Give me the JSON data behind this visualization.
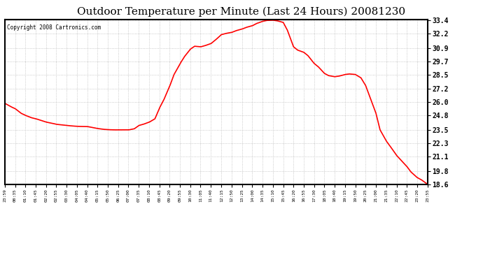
{
  "title": "Outdoor Temperature per Minute (Last 24 Hours) 20081230",
  "copyright": "Copyright 2008 Cartronics.com",
  "line_color": "#ff0000",
  "background_color": "#ffffff",
  "grid_color": "#bbbbbb",
  "title_fontsize": 11,
  "ytick_labels": [
    "18.6",
    "19.8",
    "21.1",
    "22.3",
    "23.5",
    "24.8",
    "26.0",
    "27.2",
    "28.5",
    "29.7",
    "30.9",
    "32.2",
    "33.4"
  ],
  "ytick_values": [
    18.6,
    19.8,
    21.1,
    22.3,
    23.5,
    24.8,
    26.0,
    27.2,
    28.5,
    29.7,
    30.9,
    32.2,
    33.4
  ],
  "xtick_labels": [
    "23:59",
    "00:35",
    "01:10",
    "01:45",
    "02:20",
    "02:55",
    "03:30",
    "04:05",
    "04:40",
    "05:15",
    "05:50",
    "06:25",
    "07:00",
    "07:35",
    "08:10",
    "08:45",
    "09:20",
    "09:55",
    "10:30",
    "11:05",
    "11:40",
    "12:15",
    "12:50",
    "13:25",
    "14:00",
    "14:35",
    "15:10",
    "15:45",
    "16:20",
    "16:55",
    "17:30",
    "18:05",
    "18:40",
    "19:15",
    "19:50",
    "20:25",
    "21:00",
    "21:35",
    "22:10",
    "22:45",
    "23:20",
    "23:55"
  ],
  "temperature_keypoints": [
    [
      0,
      25.9
    ],
    [
      20,
      25.6
    ],
    [
      36,
      25.4
    ],
    [
      55,
      25.0
    ],
    [
      71,
      24.8
    ],
    [
      90,
      24.6
    ],
    [
      106,
      24.5
    ],
    [
      130,
      24.3
    ],
    [
      141,
      24.2
    ],
    [
      160,
      24.1
    ],
    [
      176,
      24.0
    ],
    [
      195,
      23.95
    ],
    [
      211,
      23.9
    ],
    [
      230,
      23.85
    ],
    [
      246,
      23.82
    ],
    [
      265,
      23.8
    ],
    [
      281,
      23.8
    ],
    [
      300,
      23.7
    ],
    [
      316,
      23.62
    ],
    [
      335,
      23.55
    ],
    [
      351,
      23.52
    ],
    [
      370,
      23.5
    ],
    [
      386,
      23.5
    ],
    [
      400,
      23.5
    ],
    [
      421,
      23.5
    ],
    [
      440,
      23.6
    ],
    [
      456,
      23.9
    ],
    [
      470,
      24.0
    ],
    [
      491,
      24.2
    ],
    [
      510,
      24.5
    ],
    [
      526,
      25.5
    ],
    [
      540,
      26.2
    ],
    [
      561,
      27.5
    ],
    [
      575,
      28.5
    ],
    [
      596,
      29.5
    ],
    [
      610,
      30.1
    ],
    [
      631,
      30.8
    ],
    [
      645,
      31.05
    ],
    [
      666,
      31.0
    ],
    [
      680,
      31.1
    ],
    [
      701,
      31.3
    ],
    [
      715,
      31.6
    ],
    [
      736,
      32.1
    ],
    [
      750,
      32.2
    ],
    [
      771,
      32.3
    ],
    [
      785,
      32.45
    ],
    [
      806,
      32.6
    ],
    [
      820,
      32.75
    ],
    [
      841,
      32.9
    ],
    [
      855,
      33.1
    ],
    [
      876,
      33.3
    ],
    [
      890,
      33.38
    ],
    [
      911,
      33.4
    ],
    [
      925,
      33.35
    ],
    [
      946,
      33.2
    ],
    [
      960,
      32.5
    ],
    [
      981,
      31.0
    ],
    [
      995,
      30.7
    ],
    [
      1016,
      30.5
    ],
    [
      1030,
      30.2
    ],
    [
      1051,
      29.5
    ],
    [
      1065,
      29.2
    ],
    [
      1086,
      28.6
    ],
    [
      1100,
      28.4
    ],
    [
      1121,
      28.3
    ],
    [
      1135,
      28.35
    ],
    [
      1156,
      28.5
    ],
    [
      1170,
      28.55
    ],
    [
      1191,
      28.5
    ],
    [
      1210,
      28.2
    ],
    [
      1226,
      27.5
    ],
    [
      1240,
      26.5
    ],
    [
      1261,
      25.0
    ],
    [
      1275,
      23.5
    ],
    [
      1296,
      22.5
    ],
    [
      1310,
      22.0
    ],
    [
      1331,
      21.2
    ],
    [
      1345,
      20.8
    ],
    [
      1366,
      20.2
    ],
    [
      1380,
      19.7
    ],
    [
      1401,
      19.2
    ],
    [
      1415,
      19.0
    ],
    [
      1436,
      18.6
    ]
  ]
}
